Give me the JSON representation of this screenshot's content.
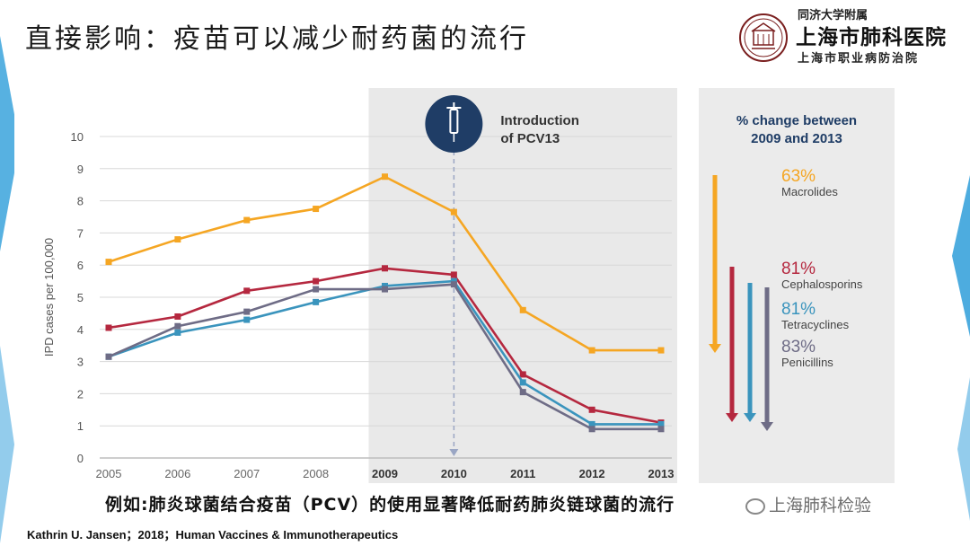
{
  "slide": {
    "title": "直接影响：疫苗可以减少耐药菌的流行",
    "caption": "例如:肺炎球菌结合疫苗（PCV）的使用显著降低耐药肺炎链球菌的流行",
    "footnote": "Kathrin U. Jansen；2018；Human Vaccines & Immunotherapeutics",
    "watermark": "上海肺科检验",
    "accent_color": "#3aa3dc"
  },
  "logo": {
    "line1": "同济大学附属",
    "line2": "上海市肺科医院",
    "line3": "上海市职业病防治院",
    "icon": "hospital-seal-icon"
  },
  "chart_data": {
    "type": "line",
    "x": [
      2005,
      2006,
      2007,
      2008,
      2009,
      2010,
      2011,
      2012,
      2013
    ],
    "ylabel": "IPD cases per 100,000",
    "ylim": [
      0,
      10
    ],
    "yticks": [
      0,
      1,
      2,
      3,
      4,
      5,
      6,
      7,
      8,
      9,
      10
    ],
    "grid": true,
    "bold_x": [
      2009,
      2010,
      2011,
      2012,
      2013
    ],
    "shaded_range": [
      2009,
      2013
    ],
    "event": {
      "x": 2010,
      "label_line1": "Introduction",
      "label_line2": "of PCV13",
      "icon": "syringe-icon"
    },
    "change_panel_title_line1": "% change between",
    "change_panel_title_line2": "2009 and 2013",
    "series": [
      {
        "name": "Macrolides",
        "change": "63%",
        "color": "#f5a623",
        "values": [
          6.1,
          6.8,
          7.4,
          7.75,
          8.75,
          7.65,
          4.6,
          3.35,
          3.35
        ]
      },
      {
        "name": "Cephalosporins",
        "change": "81%",
        "color": "#b5283f",
        "values": [
          4.05,
          4.4,
          5.2,
          5.5,
          5.9,
          5.7,
          2.6,
          1.5,
          1.1
        ]
      },
      {
        "name": "Tetracyclines",
        "change": "81%",
        "color": "#3a94bd",
        "values": [
          3.15,
          3.9,
          4.3,
          4.85,
          5.35,
          5.5,
          2.35,
          1.05,
          1.05
        ]
      },
      {
        "name": "Penicillins",
        "change": "83%",
        "color": "#6e6c86",
        "values": [
          3.15,
          4.1,
          4.55,
          5.25,
          5.25,
          5.4,
          2.05,
          0.9,
          0.9
        ]
      }
    ]
  }
}
